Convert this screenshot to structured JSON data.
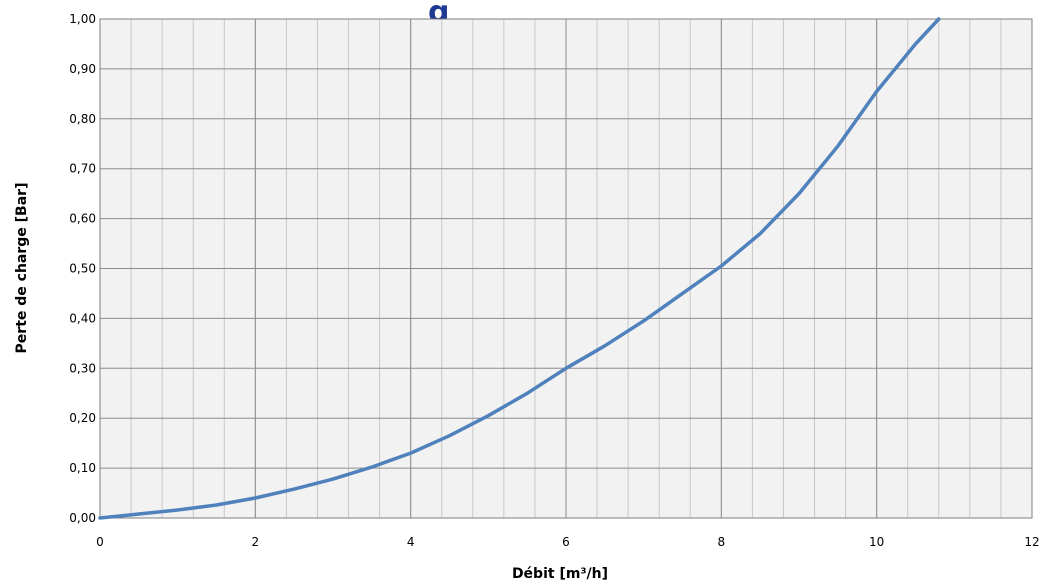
{
  "chart_data": {
    "type": "line",
    "title": "g",
    "xlabel": "Débit [m³/h]",
    "ylabel": "Perte de charge [Bar]",
    "xlim": [
      0,
      12
    ],
    "ylim": [
      0,
      1
    ],
    "x_major_ticks": [
      0,
      2,
      4,
      6,
      8,
      10,
      12
    ],
    "x_tick_labels": [
      "0",
      "2",
      "4",
      "6",
      "8",
      "10",
      "12"
    ],
    "y_major_ticks": [
      0,
      0.1,
      0.2,
      0.3,
      0.4,
      0.5,
      0.6,
      0.7,
      0.8,
      0.9,
      1.0
    ],
    "y_tick_labels": [
      "0,00",
      "0,10",
      "0,20",
      "0,30",
      "0,40",
      "0,50",
      "0,60",
      "0,70",
      "0,80",
      "0,90",
      "1,00"
    ],
    "x_minor_step": 0.4,
    "grid": true,
    "legend": "none",
    "colors": {
      "line": "#4f81bd",
      "plot_background": "#f2f2f2",
      "minor_grid": "#c8c8c8",
      "major_grid": "#8c8c8c",
      "title": "#1f3a93"
    },
    "series": [
      {
        "x": [
          0,
          0.5,
          1,
          1.5,
          2,
          2.5,
          3,
          3.5,
          4,
          4.5,
          5,
          5.5,
          6,
          6.5,
          7,
          7.5,
          8,
          8.5,
          9,
          9.5,
          10,
          10.5,
          10.8
        ],
        "y": [
          0,
          0.008,
          0.016,
          0.026,
          0.04,
          0.058,
          0.078,
          0.102,
          0.13,
          0.165,
          0.205,
          0.25,
          0.3,
          0.345,
          0.395,
          0.45,
          0.505,
          0.57,
          0.65,
          0.745,
          0.855,
          0.95,
          1.0
        ]
      }
    ]
  }
}
